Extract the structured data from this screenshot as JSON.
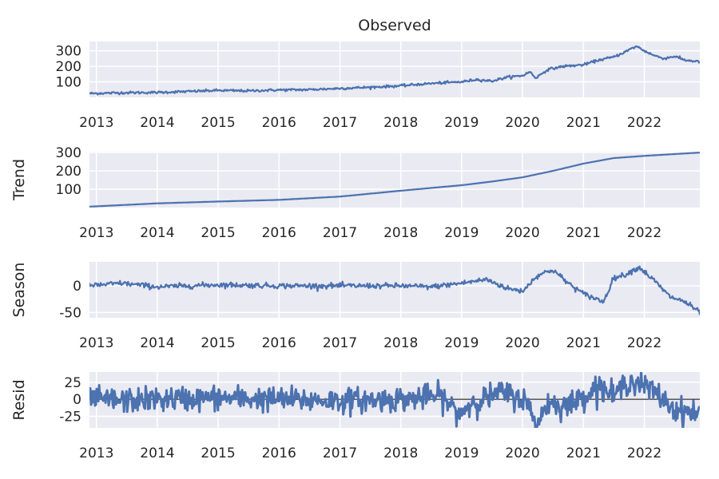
{
  "figure_title": "Observed",
  "colors": {
    "line": "#4c72b0",
    "panel_bg": "#eaeaf2",
    "grid": "#ffffff",
    "text": "#262626",
    "zero_line": "#000000"
  },
  "chart_data": [
    {
      "type": "line",
      "panel": "observed",
      "title": "Observed",
      "ylabel": "",
      "x_range": [
        "2012-11-20",
        "2022-11-30"
      ],
      "ylim": [
        0,
        360
      ],
      "yticks": [
        100,
        200,
        300
      ],
      "xticks": [
        "2013",
        "2014",
        "2015",
        "2016",
        "2017",
        "2018",
        "2019",
        "2020",
        "2021",
        "2022"
      ],
      "grid": true,
      "noise": 4,
      "x": [
        "2012-11-20",
        "2013-06-01",
        "2014-01-01",
        "2014-07-01",
        "2015-01-01",
        "2015-07-01",
        "2016-01-01",
        "2016-07-01",
        "2017-01-01",
        "2017-07-01",
        "2018-01-01",
        "2018-07-01",
        "2019-01-01",
        "2019-04-01",
        "2019-07-01",
        "2019-10-01",
        "2020-01-01",
        "2020-02-15",
        "2020-03-20",
        "2020-06-01",
        "2020-09-01",
        "2021-01-01",
        "2021-04-01",
        "2021-07-01",
        "2021-09-01",
        "2021-11-15",
        "2022-01-01",
        "2022-03-01",
        "2022-05-01",
        "2022-07-01",
        "2022-09-01",
        "2022-11-30"
      ],
      "y": [
        25,
        30,
        32,
        38,
        45,
        42,
        48,
        50,
        58,
        65,
        75,
        90,
        100,
        115,
        105,
        130,
        140,
        165,
        125,
        180,
        200,
        210,
        240,
        260,
        290,
        330,
        300,
        270,
        250,
        265,
        240,
        230
      ]
    },
    {
      "type": "line",
      "panel": "trend",
      "ylabel": "Trend",
      "x_range": [
        "2012-11-20",
        "2022-11-30"
      ],
      "ylim": [
        0,
        305
      ],
      "yticks": [
        100,
        200,
        300
      ],
      "xticks": [
        "2013",
        "2014",
        "2015",
        "2016",
        "2017",
        "2018",
        "2019",
        "2020",
        "2021",
        "2022"
      ],
      "grid": true,
      "noise": 0,
      "x": [
        "2012-11-20",
        "2014-01-01",
        "2015-01-01",
        "2016-01-01",
        "2017-01-01",
        "2018-01-01",
        "2019-01-01",
        "2019-07-01",
        "2020-01-01",
        "2020-07-01",
        "2021-01-01",
        "2021-07-01",
        "2022-01-01",
        "2022-07-01",
        "2022-11-30"
      ],
      "y": [
        5,
        23,
        33,
        42,
        60,
        92,
        122,
        142,
        165,
        200,
        240,
        270,
        282,
        292,
        300
      ]
    },
    {
      "type": "line",
      "panel": "season",
      "ylabel": "Season",
      "x_range": [
        "2012-11-20",
        "2022-11-30"
      ],
      "ylim": [
        -60,
        45
      ],
      "yticks": [
        -50,
        0
      ],
      "xticks": [
        "2013",
        "2014",
        "2015",
        "2016",
        "2017",
        "2018",
        "2019",
        "2020",
        "2021",
        "2022"
      ],
      "grid": true,
      "noise": 2.5,
      "x": [
        "2012-11-20",
        "2013-06-01",
        "2014-01-01",
        "2014-07-01",
        "2015-01-01",
        "2016-01-01",
        "2017-01-01",
        "2018-01-01",
        "2018-07-01",
        "2019-01-01",
        "2019-06-01",
        "2019-10-01",
        "2020-01-01",
        "2020-04-01",
        "2020-07-01",
        "2020-10-01",
        "2021-01-01",
        "2021-05-01",
        "2021-07-01",
        "2021-09-01",
        "2021-12-01",
        "2022-03-01",
        "2022-06-01",
        "2022-09-01",
        "2022-11-30"
      ],
      "y": [
        0,
        5,
        -2,
        0,
        2,
        0,
        0,
        0,
        -2,
        5,
        12,
        -5,
        -10,
        20,
        30,
        5,
        -15,
        -30,
        15,
        20,
        35,
        10,
        -20,
        -30,
        -50
      ]
    },
    {
      "type": "line",
      "panel": "resid",
      "ylabel": "Resid",
      "x_range": [
        "2012-11-20",
        "2022-11-30"
      ],
      "ylim": [
        -42,
        40
      ],
      "yticks": [
        -25,
        0,
        25
      ],
      "xticks": [
        "2013",
        "2014",
        "2015",
        "2016",
        "2017",
        "2018",
        "2019",
        "2020",
        "2021",
        "2022"
      ],
      "grid": true,
      "zero_line": true,
      "noise": 9,
      "x": [
        "2012-11-20",
        "2013-06-01",
        "2014-01-01",
        "2015-01-01",
        "2016-01-01",
        "2017-01-01",
        "2018-01-01",
        "2018-09-01",
        "2018-12-15",
        "2019-03-01",
        "2019-09-01",
        "2020-01-15",
        "2020-03-25",
        "2020-06-01",
        "2020-10-01",
        "2021-01-01",
        "2021-04-01",
        "2021-07-01",
        "2021-10-01",
        "2022-01-01",
        "2022-04-01",
        "2022-07-01",
        "2022-11-30"
      ],
      "y": [
        0,
        -2,
        0,
        2,
        0,
        -2,
        0,
        5,
        -22,
        -5,
        10,
        0,
        -38,
        -5,
        -10,
        5,
        20,
        5,
        28,
        20,
        5,
        -15,
        -22
      ]
    }
  ]
}
